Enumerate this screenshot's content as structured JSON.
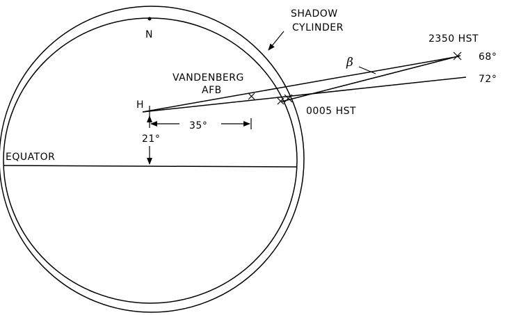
{
  "labels": {
    "shadow_cylinder_line1": "SHADOW",
    "shadow_cylinder_line2": "CYLINDER",
    "north": "N",
    "beta": "β",
    "time_2350": "2350 HST",
    "angle_68": "68°",
    "angle_72": "72°",
    "vandenberg_line1": "VANDENBERG",
    "vandenberg_line2": "AFB",
    "hawaii": "H",
    "time_0005": "0005 HST",
    "angle_35": "35°",
    "angle_21": "21°",
    "equator": "EQUATOR"
  },
  "colors": {
    "ink": "#000000",
    "background": "#ffffff"
  }
}
